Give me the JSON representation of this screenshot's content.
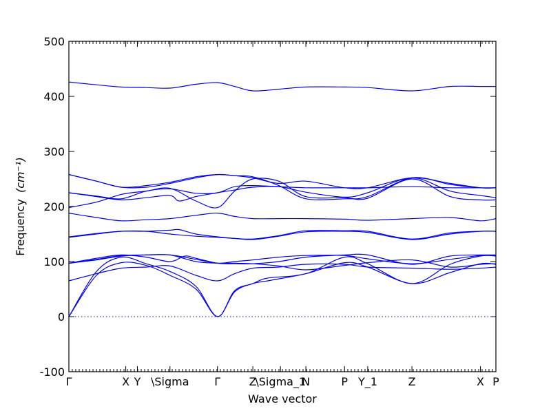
{
  "chart_data": {
    "type": "line",
    "title": "",
    "xlabel": "Wave vector",
    "ylabel": "Frequency",
    "ylabel_unit": "(cm⁻¹)",
    "ylim": [
      -100,
      500
    ],
    "yticks": [
      -100,
      0,
      100,
      200,
      300,
      400,
      500
    ],
    "xlim": [
      0,
      7.73
    ],
    "high_symmetry_points": [
      {
        "label": "Γ",
        "x": 0.0
      },
      {
        "label": "X",
        "x": 1.03
      },
      {
        "label": "Y",
        "x": 1.24
      },
      {
        "label": "\\Sigma",
        "x": 1.83
      },
      {
        "label": "Γ",
        "x": 2.69
      },
      {
        "label": "Z",
        "x": 3.33
      },
      {
        "label": "\\Sigma_1",
        "x": 3.83
      },
      {
        "label": "N",
        "x": 4.29
      },
      {
        "label": "P",
        "x": 4.99
      },
      {
        "label": "Y_1",
        "x": 5.41
      },
      {
        "label": "Z",
        "x": 6.21
      },
      {
        "label": "X",
        "x": 7.45
      },
      {
        "label": "P",
        "x": 7.73
      }
    ],
    "zero_line": 0,
    "series": [
      {
        "values": [
          [
            0,
            0
          ],
          [
            0.5,
            75
          ],
          [
            0.95,
            98
          ],
          [
            1.4,
            93
          ],
          [
            1.83,
            75
          ],
          [
            2.3,
            50
          ],
          [
            2.69,
            0
          ],
          [
            3.0,
            45
          ],
          [
            3.33,
            60
          ],
          [
            3.6,
            65
          ],
          [
            4.29,
            78
          ],
          [
            4.99,
            98
          ],
          [
            5.41,
            90
          ],
          [
            6.21,
            60
          ],
          [
            6.9,
            80
          ],
          [
            7.45,
            96
          ],
          [
            7.73,
            95
          ]
        ]
      },
      {
        "values": [
          [
            0,
            0
          ],
          [
            0.5,
            82
          ],
          [
            0.95,
            108
          ],
          [
            1.4,
            96
          ],
          [
            1.83,
            82
          ],
          [
            2.3,
            55
          ],
          [
            2.69,
            0
          ],
          [
            3.0,
            47
          ],
          [
            3.33,
            60
          ],
          [
            3.6,
            70
          ],
          [
            4.29,
            78
          ],
          [
            4.99,
            108
          ],
          [
            5.41,
            96
          ],
          [
            6.21,
            60
          ],
          [
            6.9,
            95
          ],
          [
            7.45,
            110
          ],
          [
            7.73,
            110
          ]
        ]
      },
      {
        "values": [
          [
            0,
            65
          ],
          [
            0.5,
            78
          ],
          [
            0.95,
            88
          ],
          [
            1.4,
            90
          ],
          [
            1.83,
            92
          ],
          [
            2.3,
            75
          ],
          [
            2.69,
            65
          ],
          [
            3.0,
            78
          ],
          [
            3.33,
            88
          ],
          [
            3.8,
            90
          ],
          [
            4.29,
            95
          ],
          [
            4.99,
            95
          ],
          [
            5.41,
            90
          ],
          [
            6.21,
            88
          ],
          [
            6.9,
            86
          ],
          [
            7.45,
            88
          ],
          [
            7.73,
            90
          ]
        ]
      },
      {
        "values": [
          [
            0,
            97
          ],
          [
            0.5,
            103
          ],
          [
            0.95,
            110
          ],
          [
            1.4,
            112
          ],
          [
            1.83,
            112
          ],
          [
            2.3,
            100
          ],
          [
            2.69,
            97
          ],
          [
            3.0,
            97
          ],
          [
            3.33,
            96
          ],
          [
            3.8,
            92
          ],
          [
            4.29,
            85
          ],
          [
            4.99,
            93
          ],
          [
            5.41,
            98
          ],
          [
            6.21,
            103
          ],
          [
            6.9,
            90
          ],
          [
            7.45,
            95
          ],
          [
            7.73,
            96
          ]
        ]
      },
      {
        "values": [
          [
            0,
            97
          ],
          [
            0.5,
            106
          ],
          [
            0.95,
            112
          ],
          [
            1.4,
            108
          ],
          [
            1.83,
            100
          ],
          [
            2.1,
            110
          ],
          [
            2.3,
            106
          ],
          [
            2.69,
            97
          ],
          [
            3.0,
            96
          ],
          [
            3.33,
            96
          ],
          [
            3.8,
            100
          ],
          [
            4.29,
            108
          ],
          [
            4.99,
            112
          ],
          [
            5.41,
            112
          ],
          [
            6.21,
            95
          ],
          [
            6.9,
            110
          ],
          [
            7.45,
            112
          ],
          [
            7.73,
            112
          ]
        ]
      },
      {
        "values": [
          [
            0,
            97
          ],
          [
            0.5,
            104
          ],
          [
            0.95,
            111
          ],
          [
            1.4,
            112
          ],
          [
            1.83,
            112
          ],
          [
            2.3,
            104
          ],
          [
            2.69,
            97
          ],
          [
            3.0,
            100
          ],
          [
            3.33,
            103
          ],
          [
            3.8,
            108
          ],
          [
            4.29,
            111
          ],
          [
            4.99,
            111
          ],
          [
            5.41,
            105
          ],
          [
            6.21,
            96
          ],
          [
            6.9,
            104
          ],
          [
            7.45,
            111
          ],
          [
            7.73,
            111
          ]
        ]
      },
      {
        "values": [
          [
            0,
            144
          ],
          [
            0.5,
            150
          ],
          [
            0.95,
            155
          ],
          [
            1.4,
            155
          ],
          [
            1.83,
            150
          ],
          [
            2.3,
            146
          ],
          [
            2.69,
            144
          ],
          [
            3.0,
            142
          ],
          [
            3.33,
            140
          ],
          [
            3.8,
            146
          ],
          [
            4.29,
            154
          ],
          [
            4.99,
            155
          ],
          [
            5.41,
            153
          ],
          [
            6.21,
            140
          ],
          [
            6.9,
            150
          ],
          [
            7.45,
            155
          ],
          [
            7.73,
            155
          ]
        ]
      },
      {
        "values": [
          [
            0,
            145
          ],
          [
            0.5,
            151
          ],
          [
            0.95,
            155
          ],
          [
            1.4,
            155
          ],
          [
            1.83,
            157
          ],
          [
            2.0,
            158
          ],
          [
            2.3,
            150
          ],
          [
            2.69,
            145
          ],
          [
            3.0,
            142
          ],
          [
            3.33,
            141
          ],
          [
            3.8,
            147
          ],
          [
            4.29,
            156
          ],
          [
            4.99,
            156
          ],
          [
            5.41,
            155
          ],
          [
            6.21,
            141
          ],
          [
            6.9,
            152
          ],
          [
            7.45,
            155
          ],
          [
            7.73,
            155
          ]
        ]
      },
      {
        "values": [
          [
            0,
            188
          ],
          [
            0.5,
            180
          ],
          [
            0.95,
            174
          ],
          [
            1.4,
            176
          ],
          [
            1.83,
            178
          ],
          [
            2.3,
            184
          ],
          [
            2.69,
            188
          ],
          [
            3.0,
            182
          ],
          [
            3.33,
            178
          ],
          [
            3.8,
            178
          ],
          [
            4.29,
            178
          ],
          [
            4.99,
            177
          ],
          [
            5.41,
            175
          ],
          [
            6.21,
            178
          ],
          [
            6.9,
            180
          ],
          [
            7.45,
            174
          ],
          [
            7.73,
            178
          ]
        ]
      },
      {
        "values": [
          [
            0,
            198
          ],
          [
            0.5,
            208
          ],
          [
            0.95,
            222
          ],
          [
            1.4,
            228
          ],
          [
            1.83,
            233
          ],
          [
            2.3,
            210
          ],
          [
            2.69,
            198
          ],
          [
            3.0,
            228
          ],
          [
            3.33,
            250
          ],
          [
            3.8,
            246
          ],
          [
            4.29,
            218
          ],
          [
            4.99,
            216
          ],
          [
            5.41,
            215
          ],
          [
            6.21,
            250
          ],
          [
            6.9,
            218
          ],
          [
            7.45,
            212
          ],
          [
            7.73,
            212
          ]
        ]
      },
      {
        "values": [
          [
            0,
            225
          ],
          [
            0.5,
            218
          ],
          [
            0.95,
            212
          ],
          [
            1.4,
            216
          ],
          [
            1.83,
            220
          ],
          [
            2.0,
            210
          ],
          [
            2.3,
            218
          ],
          [
            2.69,
            225
          ],
          [
            3.0,
            230
          ],
          [
            3.33,
            235
          ],
          [
            3.8,
            236
          ],
          [
            4.29,
            226
          ],
          [
            4.99,
            217
          ],
          [
            5.41,
            225
          ],
          [
            6.21,
            252
          ],
          [
            6.9,
            228
          ],
          [
            7.45,
            220
          ],
          [
            7.73,
            216
          ]
        ]
      },
      {
        "values": [
          [
            0,
            225
          ],
          [
            0.5,
            219
          ],
          [
            0.95,
            214
          ],
          [
            1.4,
            228
          ],
          [
            1.83,
            232
          ],
          [
            2.3,
            224
          ],
          [
            2.69,
            225
          ],
          [
            3.0,
            236
          ],
          [
            3.33,
            238
          ],
          [
            3.8,
            236
          ],
          [
            4.29,
            234
          ],
          [
            4.99,
            234
          ],
          [
            5.41,
            234
          ],
          [
            6.21,
            236
          ],
          [
            6.9,
            234
          ],
          [
            7.45,
            234
          ],
          [
            7.73,
            234
          ]
        ]
      },
      {
        "values": [
          [
            0,
            258
          ],
          [
            0.5,
            246
          ],
          [
            0.95,
            235
          ],
          [
            1.4,
            235
          ],
          [
            1.83,
            242
          ],
          [
            2.3,
            252
          ],
          [
            2.69,
            258
          ],
          [
            3.0,
            256
          ],
          [
            3.33,
            254
          ],
          [
            3.8,
            238
          ],
          [
            4.29,
            214
          ],
          [
            4.99,
            214
          ],
          [
            5.41,
            218
          ],
          [
            6.21,
            252
          ],
          [
            6.9,
            240
          ],
          [
            7.45,
            234
          ],
          [
            7.73,
            234
          ]
        ]
      },
      {
        "values": [
          [
            0,
            258
          ],
          [
            0.5,
            246
          ],
          [
            0.95,
            235
          ],
          [
            1.4,
            238
          ],
          [
            1.83,
            244
          ],
          [
            2.3,
            254
          ],
          [
            2.69,
            258
          ],
          [
            3.0,
            256
          ],
          [
            3.33,
            252
          ],
          [
            3.8,
            242
          ],
          [
            4.29,
            246
          ],
          [
            4.99,
            234
          ],
          [
            5.41,
            234
          ],
          [
            6.21,
            252
          ],
          [
            6.9,
            242
          ],
          [
            7.45,
            234
          ],
          [
            7.73,
            234
          ]
        ]
      },
      {
        "values": [
          [
            0,
            426
          ],
          [
            0.5,
            421
          ],
          [
            0.95,
            417
          ],
          [
            1.4,
            416
          ],
          [
            1.83,
            415
          ],
          [
            2.3,
            422
          ],
          [
            2.69,
            425
          ],
          [
            3.0,
            418
          ],
          [
            3.33,
            410
          ],
          [
            3.8,
            413
          ],
          [
            4.29,
            417
          ],
          [
            4.99,
            417
          ],
          [
            5.41,
            416
          ],
          [
            6.21,
            410
          ],
          [
            6.9,
            418
          ],
          [
            7.45,
            418
          ],
          [
            7.73,
            418
          ]
        ]
      }
    ]
  }
}
